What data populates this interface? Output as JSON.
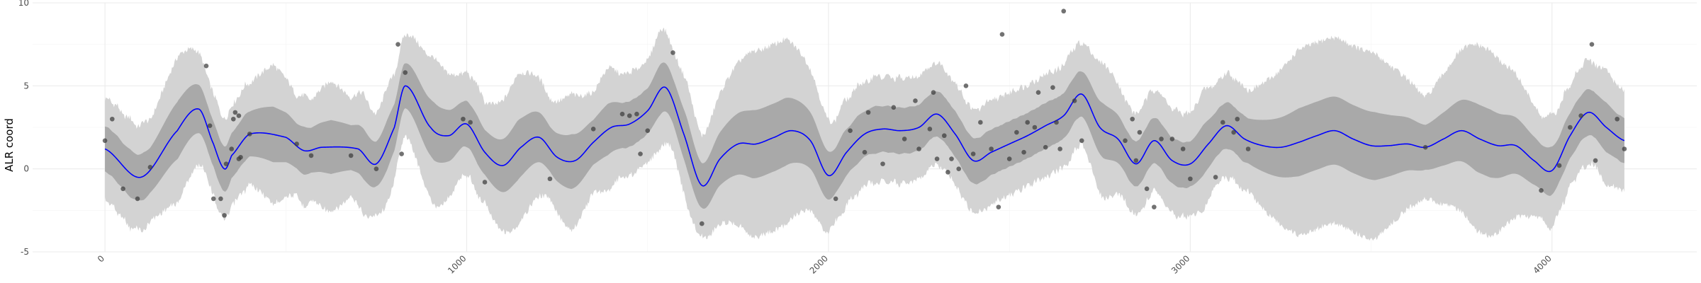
{
  "chart_data": {
    "type": "line",
    "title": "",
    "xlabel": "",
    "ylabel": "ALR coord",
    "xlim": [
      -200,
      4400
    ],
    "ylim": [
      -5,
      10
    ],
    "x_ticks": [
      0,
      1000,
      2000,
      3000,
      4000
    ],
    "y_ticks": [
      -5,
      0,
      5,
      10
    ],
    "grid": true,
    "legend": "none",
    "colors": {
      "mean_line": "#0000ff",
      "inner_band": "#a9a9a9",
      "outer_band": "#d3d3d3",
      "points": "#3c3c3c"
    },
    "series": [
      {
        "type": "line",
        "x": [
          0,
          100,
          200,
          260,
          300,
          330,
          350,
          400,
          500,
          550,
          600,
          700,
          750,
          800,
          830,
          900,
          950,
          1000,
          1050,
          1100,
          1150,
          1200,
          1250,
          1300,
          1350,
          1400,
          1450,
          1500,
          1550,
          1600,
          1650,
          1700,
          1750,
          1800,
          1850,
          1900,
          1950,
          2000,
          2050,
          2100,
          2150,
          2200,
          2250,
          2300,
          2350,
          2400,
          2450,
          2500,
          2550,
          2600,
          2650,
          2700,
          2750,
          2800,
          2850,
          2900,
          2950,
          3000,
          3050,
          3100,
          3150,
          3200,
          3250,
          3300,
          3350,
          3400,
          3450,
          3500,
          3550,
          3600,
          3650,
          3700,
          3750,
          3800,
          3850,
          3900,
          3950,
          4000,
          4050,
          4100,
          4150,
          4200
        ],
        "y": [
          1.2,
          -0.5,
          2.3,
          3.6,
          1.5,
          0.0,
          0.8,
          2.1,
          1.9,
          1.1,
          1.3,
          1.2,
          0.3,
          2.5,
          5.0,
          2.5,
          2.0,
          2.7,
          1.0,
          0.2,
          1.3,
          1.9,
          0.7,
          0.5,
          1.6,
          2.5,
          2.7,
          3.5,
          4.9,
          2.1,
          -1.0,
          0.6,
          1.5,
          1.5,
          1.9,
          2.3,
          1.7,
          -0.4,
          1.0,
          2.1,
          2.4,
          2.3,
          2.5,
          3.3,
          2.1,
          0.5,
          1.0,
          1.5,
          2.0,
          2.6,
          3.2,
          4.5,
          2.5,
          1.8,
          0.3,
          1.7,
          0.5,
          0.3,
          1.5,
          2.6,
          1.8,
          1.4,
          1.3,
          1.6,
          2.0,
          2.3,
          1.8,
          1.4,
          1.4,
          1.5,
          1.3,
          1.8,
          2.3,
          1.8,
          1.4,
          1.4,
          0.5,
          -0.1,
          2.0,
          3.4,
          2.5,
          1.7
        ]
      },
      {
        "type": "band",
        "half_width_inner": [
          1.35,
          2.05
        ],
        "half_width_outer": [
          3.0,
          5.6
        ]
      },
      {
        "type": "scatter",
        "points": [
          [
            0,
            1.7
          ],
          [
            20,
            3.0
          ],
          [
            50,
            -1.2
          ],
          [
            90,
            -1.8
          ],
          [
            125,
            0.1
          ],
          [
            280,
            6.2
          ],
          [
            290,
            2.6
          ],
          [
            300,
            -1.8
          ],
          [
            320,
            -1.8
          ],
          [
            330,
            -2.8
          ],
          [
            335,
            0.3
          ],
          [
            350,
            1.2
          ],
          [
            355,
            3.0
          ],
          [
            360,
            3.4
          ],
          [
            370,
            3.2
          ],
          [
            370,
            0.6
          ],
          [
            375,
            0.7
          ],
          [
            400,
            2.1
          ],
          [
            530,
            1.5
          ],
          [
            570,
            0.8
          ],
          [
            680,
            0.8
          ],
          [
            750,
            0.0
          ],
          [
            810,
            7.5
          ],
          [
            820,
            0.9
          ],
          [
            830,
            5.8
          ],
          [
            990,
            3.0
          ],
          [
            1010,
            2.8
          ],
          [
            1050,
            -0.8
          ],
          [
            1230,
            -0.6
          ],
          [
            1350,
            2.4
          ],
          [
            1430,
            3.3
          ],
          [
            1450,
            3.2
          ],
          [
            1470,
            3.3
          ],
          [
            1480,
            0.9
          ],
          [
            1500,
            2.3
          ],
          [
            1570,
            7.0
          ],
          [
            1650,
            -3.3
          ],
          [
            2020,
            -1.8
          ],
          [
            2060,
            2.3
          ],
          [
            2100,
            1.0
          ],
          [
            2110,
            3.4
          ],
          [
            2150,
            0.3
          ],
          [
            2180,
            3.7
          ],
          [
            2210,
            1.8
          ],
          [
            2240,
            4.1
          ],
          [
            2250,
            1.2
          ],
          [
            2280,
            2.4
          ],
          [
            2290,
            4.6
          ],
          [
            2300,
            0.6
          ],
          [
            2320,
            2.0
          ],
          [
            2330,
            -0.2
          ],
          [
            2340,
            0.6
          ],
          [
            2360,
            0.0
          ],
          [
            2380,
            5.0
          ],
          [
            2400,
            0.9
          ],
          [
            2420,
            2.8
          ],
          [
            2450,
            1.2
          ],
          [
            2470,
            -2.3
          ],
          [
            2480,
            8.1
          ],
          [
            2500,
            0.6
          ],
          [
            2520,
            2.2
          ],
          [
            2540,
            1.0
          ],
          [
            2550,
            2.8
          ],
          [
            2570,
            2.5
          ],
          [
            2580,
            4.6
          ],
          [
            2600,
            1.3
          ],
          [
            2620,
            4.9
          ],
          [
            2630,
            2.8
          ],
          [
            2640,
            1.2
          ],
          [
            2650,
            9.5
          ],
          [
            2680,
            4.1
          ],
          [
            2700,
            1.7
          ],
          [
            2820,
            1.7
          ],
          [
            2840,
            3.0
          ],
          [
            2850,
            0.5
          ],
          [
            2860,
            2.2
          ],
          [
            2880,
            -1.2
          ],
          [
            2900,
            -2.3
          ],
          [
            2920,
            1.8
          ],
          [
            2950,
            1.8
          ],
          [
            2980,
            1.2
          ],
          [
            3000,
            -0.6
          ],
          [
            3070,
            -0.5
          ],
          [
            3090,
            2.8
          ],
          [
            3120,
            2.2
          ],
          [
            3130,
            3.0
          ],
          [
            3160,
            1.2
          ],
          [
            3650,
            1.3
          ],
          [
            3970,
            -1.3
          ],
          [
            4020,
            0.2
          ],
          [
            4050,
            2.5
          ],
          [
            4080,
            3.2
          ],
          [
            4110,
            7.5
          ],
          [
            4120,
            0.5
          ],
          [
            4180,
            3.0
          ],
          [
            4200,
            1.2
          ]
        ]
      }
    ]
  }
}
